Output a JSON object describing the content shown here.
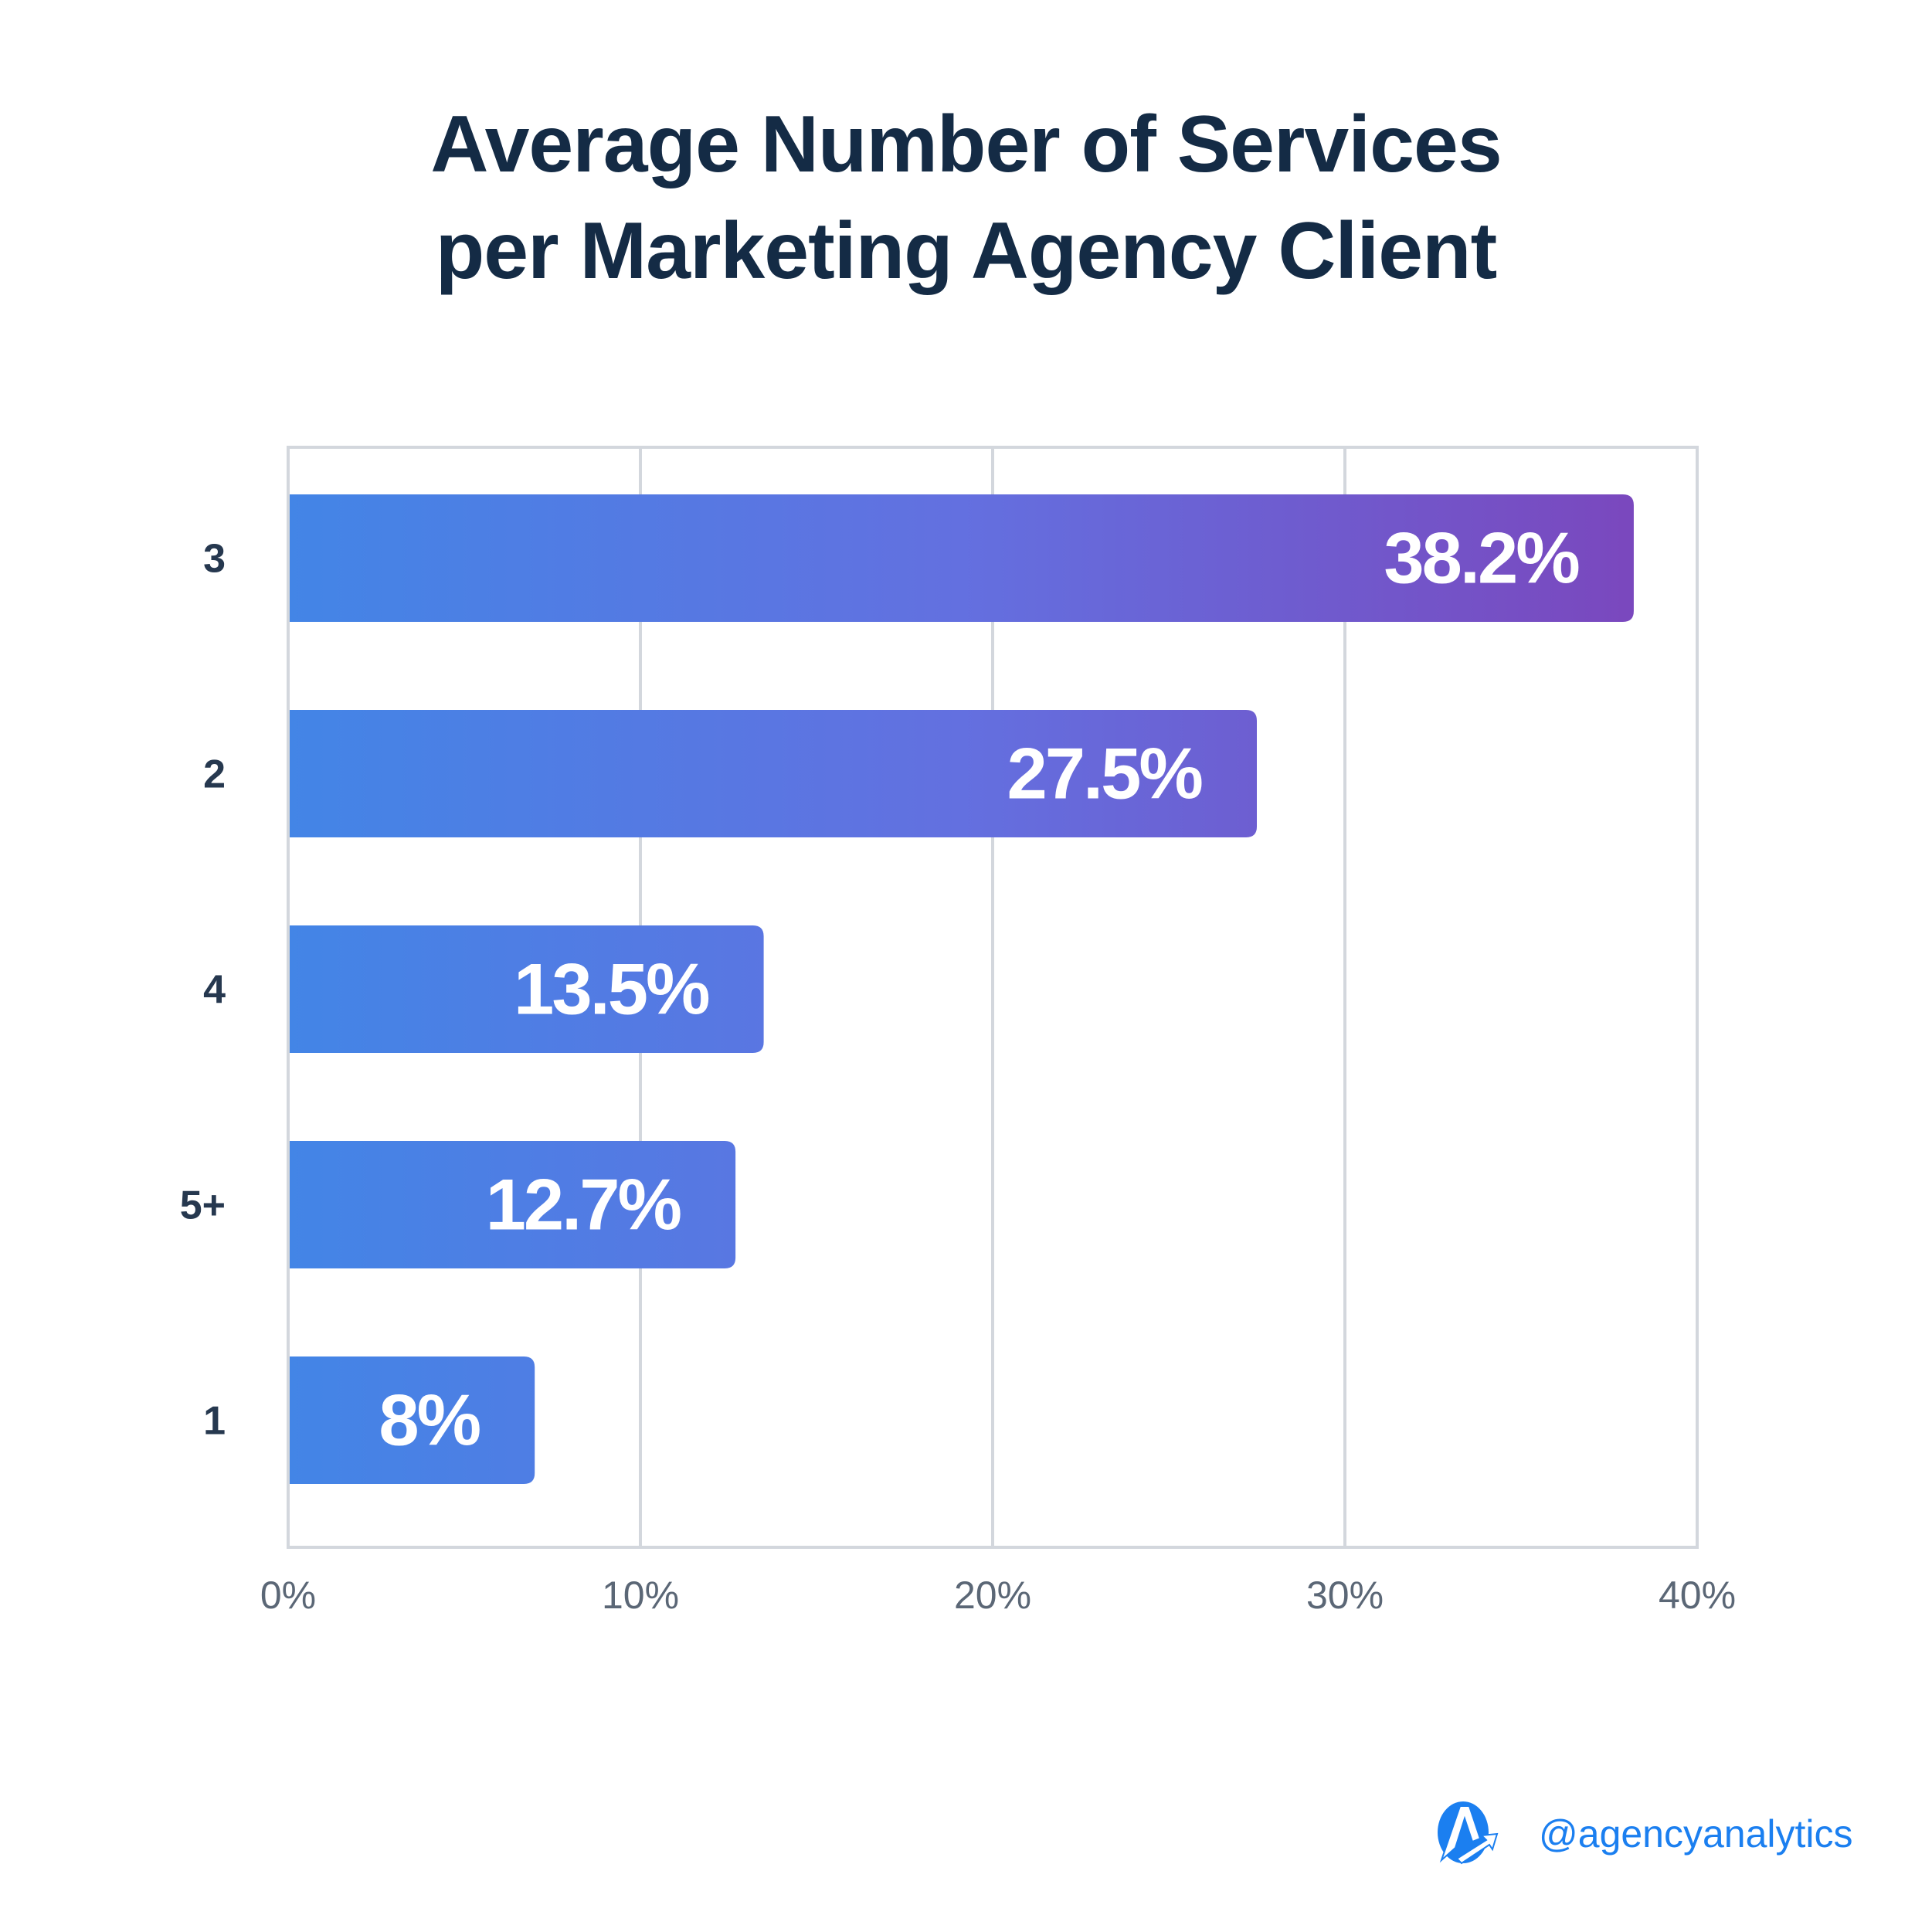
{
  "chart_data": {
    "type": "bar",
    "orientation": "horizontal",
    "title": "Average Number of Services per Marketing Agency Client",
    "title_lines": [
      "Average Number of Services",
      "per Marketing Agency Client"
    ],
    "categories": [
      "3",
      "2",
      "4",
      "5+",
      "1"
    ],
    "values": [
      38.2,
      27.5,
      13.5,
      12.7,
      8
    ],
    "data_labels": [
      "38.2%",
      "27.5%",
      "13.5%",
      "12.7%",
      "8%"
    ],
    "xlabel": "",
    "ylabel": "",
    "xlim": [
      0,
      40
    ],
    "x_ticks": [
      0,
      10,
      20,
      30,
      40
    ],
    "x_tick_labels": [
      "0%",
      "10%",
      "20%",
      "30%",
      "40%"
    ],
    "grid": true,
    "legend": "none"
  },
  "colors": {
    "title": "#142b45",
    "category_label": "#26384f",
    "tick_label": "#5b6776",
    "grid": "#d3d7dd",
    "bar_gradient_start": "#4385e6",
    "bar_gradient_mid": "#6370e0",
    "bar_gradient_end": "#7a48be",
    "inside_label": "#ffffff",
    "outside_label": "#1a82f0",
    "brand": "#1b7ff0"
  },
  "footer": {
    "logo_icon": "agencyanalytics-logo-icon",
    "handle": "@agencyanalytics"
  }
}
